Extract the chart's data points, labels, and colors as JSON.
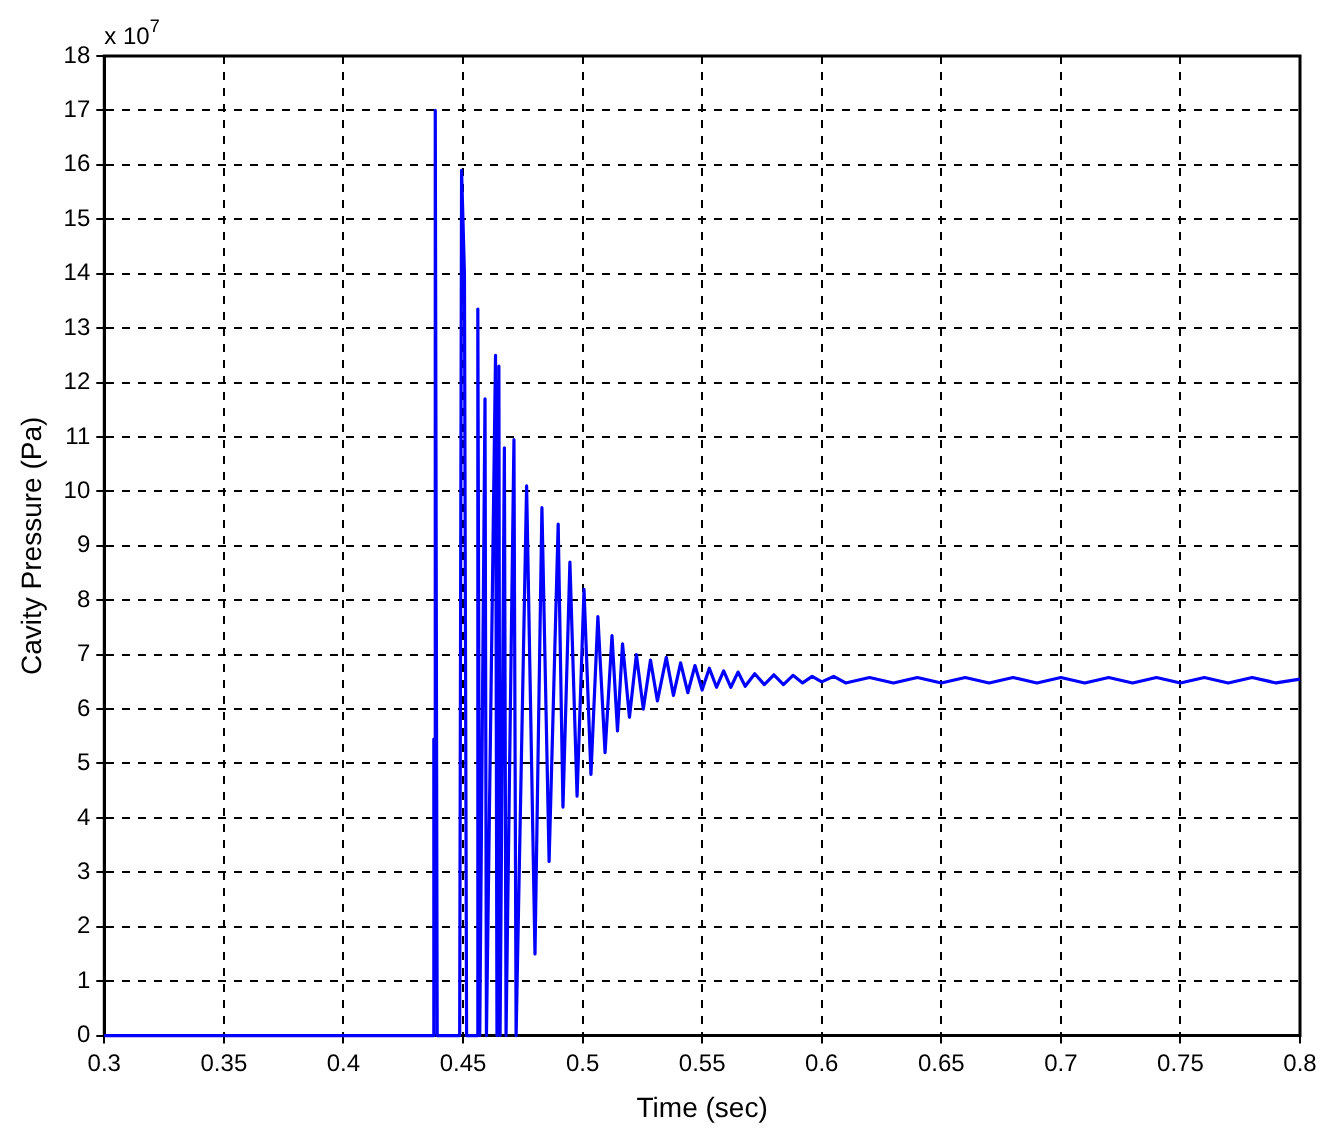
{
  "chart_data": {
    "type": "line",
    "xlabel": "Time (sec)",
    "ylabel": "Cavity Pressure (Pa)",
    "annotations": [
      "x 10$^{7}$"
    ],
    "xlim": [
      0.3,
      0.8
    ],
    "xticks": [
      0.3,
      0.35,
      0.4,
      0.45,
      0.5,
      0.55,
      0.6,
      0.65,
      0.7,
      0.75,
      0.8
    ],
    "ylim": [
      0,
      18
    ],
    "yticks": [
      0,
      1,
      2,
      3,
      4,
      5,
      6,
      7,
      8,
      9,
      10,
      11,
      12,
      13,
      14,
      15,
      16,
      17,
      18
    ],
    "grid": true,
    "marker": "none",
    "line_style": "solid",
    "legend": false,
    "series": [
      {
        "color": "#0000ff",
        "x": [
          0.3,
          0.4376,
          0.4378,
          0.4383,
          0.4384,
          0.4392,
          0.4486,
          0.4494,
          0.4506,
          0.4515,
          0.4556,
          0.4562,
          0.457,
          0.4592,
          0.4598,
          0.4636,
          0.4642,
          0.465,
          0.4655,
          0.4673,
          0.468,
          0.4713,
          0.4722,
          0.4766,
          0.4801,
          0.483,
          0.486,
          0.4898,
          0.4918,
          0.4947,
          0.4977,
          0.5006,
          0.5035,
          0.5064,
          0.5094,
          0.5123,
          0.5146,
          0.5167,
          0.5196,
          0.5225,
          0.5254,
          0.5284,
          0.5313,
          0.535,
          0.538,
          0.541,
          0.544,
          0.547,
          0.55,
          0.553,
          0.556,
          0.559,
          0.562,
          0.565,
          0.568,
          0.572,
          0.576,
          0.58,
          0.584,
          0.588,
          0.592,
          0.596,
          0.6,
          0.605,
          0.61,
          0.62,
          0.63,
          0.64,
          0.65,
          0.66,
          0.67,
          0.68,
          0.69,
          0.7,
          0.71,
          0.72,
          0.73,
          0.74,
          0.75,
          0.76,
          0.77,
          0.78,
          0.79,
          0.8
        ],
        "values": [
          0,
          0,
          5.45,
          5.45,
          17,
          0,
          0,
          15.9,
          14,
          0,
          0,
          13.35,
          0,
          11.7,
          0,
          12.5,
          0,
          12.3,
          0,
          10.8,
          0,
          10.95,
          0,
          10.1,
          1.5,
          9.7,
          3.2,
          9.4,
          4.2,
          8.7,
          4.4,
          8.2,
          4.8,
          7.7,
          5.2,
          7.35,
          5.6,
          7.2,
          5.85,
          7,
          6,
          6.9,
          6.15,
          6.95,
          6.25,
          6.85,
          6.3,
          6.8,
          6.35,
          6.75,
          6.4,
          6.7,
          6.4,
          6.68,
          6.42,
          6.65,
          6.45,
          6.63,
          6.45,
          6.62,
          6.48,
          6.6,
          6.5,
          6.6,
          6.48,
          6.58,
          6.48,
          6.58,
          6.48,
          6.58,
          6.48,
          6.58,
          6.48,
          6.58,
          6.48,
          6.58,
          6.48,
          6.58,
          6.48,
          6.58,
          6.48,
          6.58,
          6.48,
          6.55
        ]
      }
    ]
  }
}
